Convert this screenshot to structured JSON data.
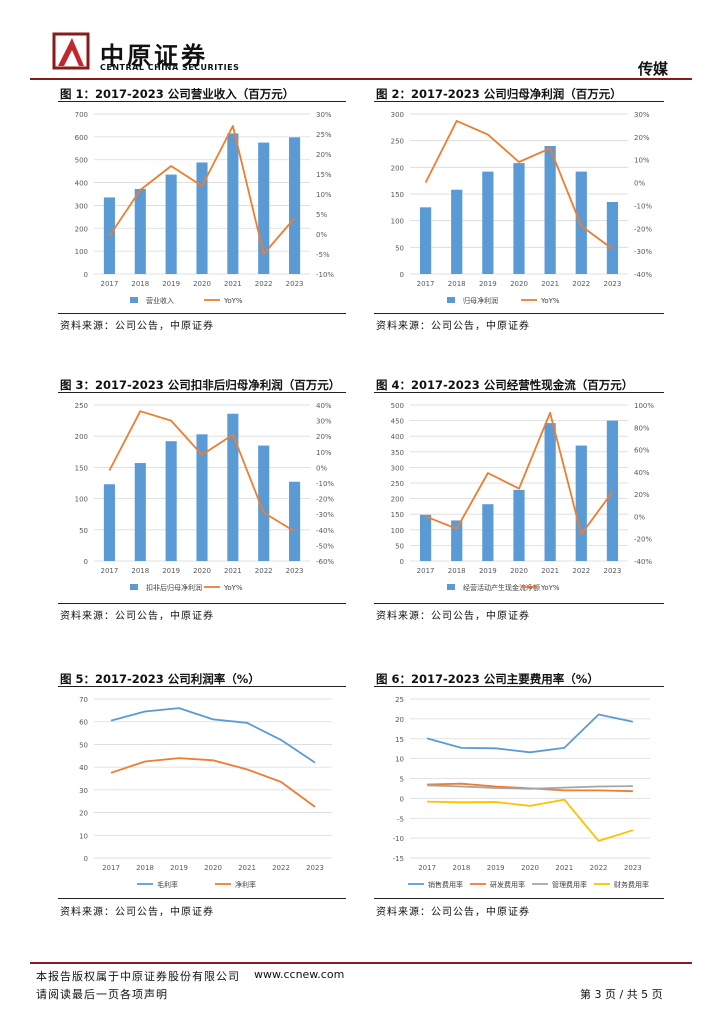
{
  "header": {
    "brand_cn": "中原证券",
    "brand_en": "CENTRAL CHINA SECURITIES",
    "sector": "传媒"
  },
  "colors": {
    "blue": "#5b9bd5",
    "orange": "#ed7d31",
    "gray": "#a5a5a5",
    "gold": "#ffc000",
    "brand_red": "#8b1a1a"
  },
  "figures": [
    {
      "title": "图 1：2017-2023 公司营业收入（百万元）",
      "source": "资料来源：公司公告，中原证券"
    },
    {
      "title": "图 2：2017-2023 公司归母净利润（百万元）",
      "source": "资料来源：公司公告，中原证券"
    },
    {
      "title": "图 3：2017-2023 公司扣非后归母净利润（百万元）",
      "source": "资料来源：公司公告，中原证券"
    },
    {
      "title": "图 4：2017-2023 公司经营性现金流（百万元）",
      "source": "资料来源：公司公告，中原证券"
    },
    {
      "title": "图 5：2017-2023 公司利润率（%）",
      "source": "资料来源：公司公告，中原证券"
    },
    {
      "title": "图 6：2017-2023 公司主要费用率（%）",
      "source": "资料来源：公司公告，中原证券"
    }
  ],
  "chart_data": [
    {
      "type": "bar",
      "title": "图 1：2017-2023 公司营业收入（百万元）",
      "categories": [
        "2017",
        "2018",
        "2019",
        "2020",
        "2021",
        "2022",
        "2023"
      ],
      "series": [
        {
          "name": "营业收入",
          "kind": "bar",
          "axis": "left",
          "values": [
            335,
            372,
            435,
            488,
            615,
            575,
            598
          ]
        },
        {
          "name": "YoY%",
          "kind": "line",
          "axis": "right",
          "values": [
            -0.5,
            11,
            17,
            12,
            27,
            -5,
            4
          ]
        }
      ],
      "ylim": [
        0,
        700
      ],
      "yticks": [
        0,
        100,
        200,
        300,
        400,
        500,
        600,
        700
      ],
      "yticklabels": [
        "0",
        "100",
        "200",
        "300",
        "400",
        "500",
        "600",
        "700"
      ],
      "y2lim": [
        -10,
        30
      ],
      "y2ticks": [
        -10,
        -5,
        0,
        5,
        10,
        15,
        20,
        25,
        30
      ],
      "y2ticklabels": [
        "-10%",
        "-5%",
        "0%",
        "5%",
        "10%",
        "15%",
        "20%",
        "25%",
        "30%"
      ],
      "legend": "bottom"
    },
    {
      "type": "bar",
      "title": "图 2：2017-2023 公司归母净利润（百万元）",
      "categories": [
        "2017",
        "2018",
        "2019",
        "2020",
        "2021",
        "2022",
        "2023"
      ],
      "series": [
        {
          "name": "归母净利润",
          "kind": "bar",
          "axis": "left",
          "values": [
            125,
            158,
            192,
            208,
            240,
            192,
            135
          ]
        },
        {
          "name": "YoY%",
          "kind": "line",
          "axis": "right",
          "values": [
            0,
            27,
            21,
            9,
            15,
            -19,
            -29
          ]
        }
      ],
      "ylim": [
        0,
        300
      ],
      "yticks": [
        0,
        50,
        100,
        150,
        200,
        250,
        300
      ],
      "yticklabels": [
        "0",
        "50",
        "100",
        "150",
        "200",
        "250",
        "300"
      ],
      "y2lim": [
        -40,
        30
      ],
      "y2ticks": [
        -40,
        -30,
        -20,
        -10,
        0,
        10,
        20,
        30
      ],
      "y2ticklabels": [
        "-40%",
        "-30%",
        "-20%",
        "-10%",
        "0%",
        "10%",
        "20%",
        "30%"
      ],
      "legend": "bottom"
    },
    {
      "type": "bar",
      "title": "图 3：2017-2023 公司扣非后归母净利润（百万元）",
      "categories": [
        "2017",
        "2018",
        "2019",
        "2020",
        "2021",
        "2022",
        "2023"
      ],
      "series": [
        {
          "name": "扣非后归母净利润",
          "kind": "bar",
          "axis": "left",
          "values": [
            123,
            157,
            192,
            203,
            236,
            185,
            127
          ]
        },
        {
          "name": "YoY%",
          "kind": "line",
          "axis": "right",
          "values": [
            -2,
            36,
            30,
            8,
            21,
            -29,
            -41
          ]
        }
      ],
      "ylim": [
        0,
        250
      ],
      "yticks": [
        0,
        50,
        100,
        150,
        200,
        250
      ],
      "yticklabels": [
        "0",
        "50",
        "100",
        "150",
        "200",
        "250"
      ],
      "y2lim": [
        -60,
        40
      ],
      "y2ticks": [
        -60,
        -50,
        -40,
        -30,
        -20,
        -10,
        0,
        10,
        20,
        30,
        40
      ],
      "y2ticklabels": [
        "-60%",
        "-50%",
        "-40%",
        "-30%",
        "-20%",
        "-10%",
        "0%",
        "10%",
        "20%",
        "30%",
        "40%"
      ],
      "legend": "bottom"
    },
    {
      "type": "bar",
      "title": "图 4：2017-2023 公司经营性现金流（百万元）",
      "categories": [
        "2017",
        "2018",
        "2019",
        "2020",
        "2021",
        "2022",
        "2023"
      ],
      "series": [
        {
          "name": "经营活动产生现金流净额",
          "kind": "bar",
          "axis": "left",
          "values": [
            148,
            130,
            182,
            228,
            442,
            370,
            450
          ]
        },
        {
          "name": "YoY%",
          "kind": "line",
          "axis": "right",
          "values": [
            0,
            -11,
            39,
            25,
            93,
            -16,
            22
          ]
        }
      ],
      "ylim": [
        0,
        500
      ],
      "yticks": [
        0,
        50,
        100,
        150,
        200,
        250,
        300,
        350,
        400,
        450,
        500
      ],
      "yticklabels": [
        "0",
        "50",
        "100",
        "150",
        "200",
        "250",
        "300",
        "350",
        "400",
        "450",
        "500"
      ],
      "y2lim": [
        -40,
        100
      ],
      "y2ticks": [
        -40,
        -20,
        0,
        20,
        40,
        60,
        80,
        100
      ],
      "y2ticklabels": [
        "-40%",
        "-20%",
        "0%",
        "20%",
        "40%",
        "60%",
        "80%",
        "100%"
      ],
      "legend": "bottom"
    },
    {
      "type": "line",
      "title": "图 5：2017-2023 公司利润率（%）",
      "categories": [
        "2017",
        "2018",
        "2019",
        "2020",
        "2021",
        "2022",
        "2023"
      ],
      "series": [
        {
          "name": "毛利率",
          "kind": "line",
          "axis": "left",
          "values": [
            60.5,
            64.5,
            66,
            61,
            59.5,
            52,
            42
          ]
        },
        {
          "name": "净利率",
          "kind": "line",
          "axis": "left",
          "values": [
            37.5,
            42.5,
            44,
            43,
            39,
            33.5,
            22.5
          ]
        }
      ],
      "ylim": [
        0,
        70
      ],
      "yticks": [
        0,
        10,
        20,
        30,
        40,
        50,
        60,
        70
      ],
      "yticklabels": [
        "0",
        "10",
        "20",
        "30",
        "40",
        "50",
        "60",
        "70"
      ],
      "legend": "bottom"
    },
    {
      "type": "line",
      "title": "图 6：2017-2023 公司主要费用率（%）",
      "categories": [
        "2017",
        "2018",
        "2019",
        "2020",
        "2021",
        "2022",
        "2023"
      ],
      "series": [
        {
          "name": "销售费用率",
          "kind": "line",
          "axis": "left",
          "values": [
            15.1,
            12.7,
            12.6,
            11.6,
            12.7,
            21.1,
            19.3
          ]
        },
        {
          "name": "研发费用率",
          "kind": "line",
          "axis": "left",
          "values": [
            3.5,
            3.7,
            3,
            2.5,
            2,
            2,
            1.8
          ]
        },
        {
          "name": "管理费用率",
          "kind": "line",
          "axis": "left",
          "values": [
            3.3,
            3,
            2.6,
            2.4,
            2.7,
            3,
            3.1
          ]
        },
        {
          "name": "财务费用率",
          "kind": "line",
          "axis": "left",
          "values": [
            -0.8,
            -1,
            -0.9,
            -1.9,
            -0.3,
            -10.7,
            -8
          ]
        }
      ],
      "ylim": [
        -15,
        25
      ],
      "yticks": [
        -15,
        -10,
        -5,
        0,
        5,
        10,
        15,
        20,
        25
      ],
      "yticklabels": [
        "-15",
        "-10",
        "-5",
        "0",
        "5",
        "10",
        "15",
        "20",
        "25"
      ],
      "legend": "bottom"
    }
  ],
  "footer": {
    "copyright": "本报告版权属于中原证券股份有限公司",
    "website": "www.ccnew.com",
    "notice": "请阅读最后一页各项声明",
    "page": "第 3 页 / 共 5 页"
  }
}
